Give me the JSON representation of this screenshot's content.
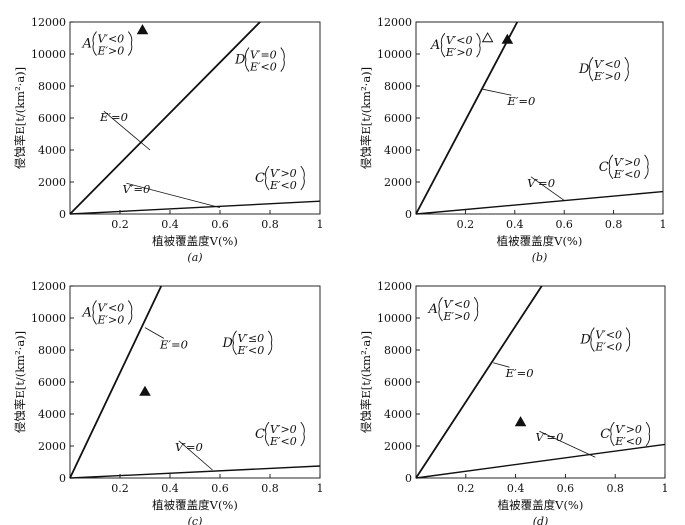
{
  "chart_data": [
    {
      "panel": "(a)",
      "type": "line",
      "xlabel": "植被覆盖度V(%)",
      "ylabel": "侵蚀率E[t/(km²·a)]",
      "xlim": [
        0,
        1
      ],
      "ylim": [
        0,
        12000
      ],
      "xticks": [
        "0.2",
        "0.4",
        "0.6",
        "0.8",
        "1"
      ],
      "yticks": [
        "0",
        "2000",
        "4000",
        "6000",
        "8000",
        "10000",
        "12000"
      ],
      "series": [
        {
          "name": "E′=0",
          "x": [
            0,
            0.76
          ],
          "y": [
            0,
            12000
          ]
        },
        {
          "name": "V′=0",
          "x": [
            0,
            1
          ],
          "y": [
            0,
            800
          ]
        }
      ],
      "points": [
        {
          "marker": "filled-triangle",
          "x": 0.29,
          "y": 11500
        }
      ],
      "regions": [
        {
          "prefix": "A",
          "top": "V′<0",
          "bottom": "E′>0"
        },
        {
          "prefix": "D",
          "top": "V′=0",
          "bottom": "E′<0"
        },
        {
          "prefix": "C",
          "top": "V′>0",
          "bottom": "E′<0"
        }
      ]
    },
    {
      "panel": "(b)",
      "type": "line",
      "xlabel": "植被覆盖度V(%)",
      "ylabel": "侵蚀率E[t/(km²·a)]",
      "xlim": [
        0,
        1
      ],
      "ylim": [
        0,
        12000
      ],
      "xticks": [
        "0.2",
        "0.4",
        "0.6",
        "0.8",
        "1"
      ],
      "yticks": [
        "0",
        "2000",
        "4000",
        "6000",
        "8000",
        "10000",
        "12000"
      ],
      "series": [
        {
          "name": "E′=0",
          "x": [
            0,
            0.41
          ],
          "y": [
            0,
            12000
          ]
        },
        {
          "name": "V′=0",
          "x": [
            0,
            1
          ],
          "y": [
            0,
            1400
          ]
        }
      ],
      "points": [
        {
          "marker": "open-triangle",
          "x": 0.29,
          "y": 11000
        },
        {
          "marker": "filled-triangle",
          "x": 0.37,
          "y": 10900
        }
      ],
      "regions": [
        {
          "prefix": "A",
          "top": "V′<0",
          "bottom": "E′>0"
        },
        {
          "prefix": "D",
          "top": "V′<0",
          "bottom": "E′>0"
        },
        {
          "prefix": "C",
          "top": "V′>0",
          "bottom": "E′<0"
        }
      ]
    },
    {
      "panel": "(c)",
      "type": "line",
      "xlabel": "植被覆盖度V(%)",
      "ylabel": "侵蚀率E[t/(km²·a)]",
      "xlim": [
        0,
        1
      ],
      "ylim": [
        0,
        12000
      ],
      "xticks": [
        "0.2",
        "0.4",
        "0.6",
        "0.8",
        "1"
      ],
      "yticks": [
        "0",
        "2000",
        "4000",
        "6000",
        "8000",
        "10000",
        "12000"
      ],
      "series": [
        {
          "name": "E′=0",
          "x": [
            0,
            0.365
          ],
          "y": [
            0,
            12000
          ]
        },
        {
          "name": "V′=0",
          "x": [
            0,
            1
          ],
          "y": [
            0,
            750
          ]
        }
      ],
      "points": [
        {
          "marker": "filled-triangle",
          "x": 0.3,
          "y": 5400
        }
      ],
      "regions": [
        {
          "prefix": "A",
          "top": "V′<0",
          "bottom": "E′>0"
        },
        {
          "prefix": "D",
          "top": "V′≤0",
          "bottom": "E′<0"
        },
        {
          "prefix": "C",
          "top": "V′>0",
          "bottom": "E′<0"
        }
      ]
    },
    {
      "panel": "(d)",
      "type": "line",
      "xlabel": "植被覆盖度V(%)",
      "ylabel": "侵蚀率E[t/(km²·a)]",
      "xlim": [
        0,
        1
      ],
      "ylim": [
        0,
        12000
      ],
      "xticks": [
        "0.2",
        "0.4",
        "0.6",
        "0.8",
        "1"
      ],
      "yticks": [
        "0",
        "2000",
        "4000",
        "6000",
        "8000",
        "10000",
        "12000"
      ],
      "series": [
        {
          "name": "E′=0",
          "x": [
            0,
            0.505
          ],
          "y": [
            0,
            12000
          ]
        },
        {
          "name": "V′=0",
          "x": [
            0,
            1
          ],
          "y": [
            0,
            2100
          ]
        }
      ],
      "points": [
        {
          "marker": "filled-triangle",
          "x": 0.42,
          "y": 3500
        }
      ],
      "regions": [
        {
          "prefix": "A",
          "top": "V′<0",
          "bottom": "E′>0"
        },
        {
          "prefix": "D",
          "top": "V′<0",
          "bottom": "E′<0"
        },
        {
          "prefix": "C",
          "top": "V′>0",
          "bottom": "E′<0"
        }
      ]
    }
  ]
}
